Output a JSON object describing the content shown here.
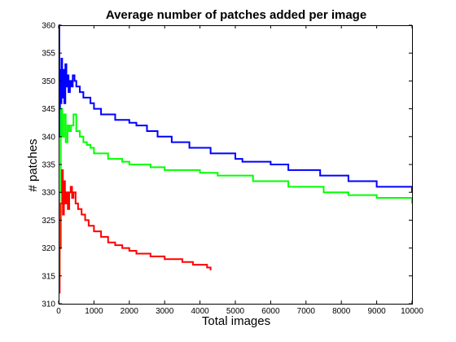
{
  "chart_data": {
    "type": "line",
    "title": "Average number of patches added per image",
    "xlabel": "Total images",
    "ylabel": "# patches",
    "xlim": [
      0,
      10000
    ],
    "ylim": [
      310,
      360
    ],
    "xticks": [
      0,
      1000,
      2000,
      3000,
      4000,
      5000,
      6000,
      7000,
      8000,
      9000,
      10000
    ],
    "yticks": [
      310,
      315,
      320,
      325,
      330,
      335,
      340,
      345,
      350,
      355,
      360
    ],
    "grid": false,
    "series": [
      {
        "color": "#0000ff",
        "points": [
          [
            0,
            360
          ],
          [
            20,
            340
          ],
          [
            40,
            352
          ],
          [
            60,
            346
          ],
          [
            80,
            354
          ],
          [
            100,
            347
          ],
          [
            130,
            352
          ],
          [
            160,
            346
          ],
          [
            190,
            353
          ],
          [
            220,
            349
          ],
          [
            250,
            351
          ],
          [
            280,
            348
          ],
          [
            320,
            350
          ],
          [
            360,
            349
          ],
          [
            400,
            351
          ],
          [
            450,
            350
          ],
          [
            500,
            349
          ],
          [
            600,
            348
          ],
          [
            700,
            347
          ],
          [
            800,
            347
          ],
          [
            900,
            346
          ],
          [
            1000,
            345
          ],
          [
            1200,
            344
          ],
          [
            1400,
            344
          ],
          [
            1600,
            343
          ],
          [
            1800,
            343
          ],
          [
            2000,
            342.5
          ],
          [
            2200,
            342
          ],
          [
            2500,
            341
          ],
          [
            2800,
            340
          ],
          [
            3200,
            339
          ],
          [
            3700,
            338
          ],
          [
            4300,
            337
          ],
          [
            5000,
            336
          ],
          [
            5200,
            335.5
          ],
          [
            6000,
            335
          ],
          [
            6500,
            334
          ],
          [
            7400,
            333
          ],
          [
            8200,
            332
          ],
          [
            9000,
            331
          ],
          [
            10000,
            330
          ]
        ]
      },
      {
        "color": "#00ff00",
        "points": [
          [
            0,
            315
          ],
          [
            30,
            330
          ],
          [
            60,
            345
          ],
          [
            100,
            340
          ],
          [
            150,
            344
          ],
          [
            200,
            339
          ],
          [
            250,
            342
          ],
          [
            300,
            341
          ],
          [
            350,
            342
          ],
          [
            420,
            344
          ],
          [
            500,
            341
          ],
          [
            600,
            340
          ],
          [
            700,
            339
          ],
          [
            800,
            338.5
          ],
          [
            900,
            338
          ],
          [
            1000,
            337
          ],
          [
            1200,
            337
          ],
          [
            1400,
            336
          ],
          [
            1600,
            336
          ],
          [
            1800,
            335.5
          ],
          [
            2000,
            335
          ],
          [
            2300,
            335
          ],
          [
            2600,
            334.5
          ],
          [
            3000,
            334
          ],
          [
            3500,
            334
          ],
          [
            4000,
            333.5
          ],
          [
            4500,
            333
          ],
          [
            5500,
            332
          ],
          [
            6500,
            331
          ],
          [
            7500,
            330
          ],
          [
            8200,
            329.5
          ],
          [
            9000,
            329
          ],
          [
            10000,
            328
          ]
        ]
      },
      {
        "color": "#ff0000",
        "points": [
          [
            0,
            312
          ],
          [
            30,
            320
          ],
          [
            60,
            328
          ],
          [
            100,
            334
          ],
          [
            120,
            326
          ],
          [
            150,
            332
          ],
          [
            180,
            328
          ],
          [
            220,
            330
          ],
          [
            260,
            327
          ],
          [
            300,
            330
          ],
          [
            340,
            331
          ],
          [
            380,
            329
          ],
          [
            420,
            330
          ],
          [
            480,
            328
          ],
          [
            550,
            327
          ],
          [
            650,
            326
          ],
          [
            750,
            325
          ],
          [
            850,
            324
          ],
          [
            1000,
            323
          ],
          [
            1200,
            322
          ],
          [
            1400,
            321
          ],
          [
            1600,
            320.5
          ],
          [
            1800,
            320
          ],
          [
            2000,
            319.5
          ],
          [
            2200,
            319
          ],
          [
            2600,
            318.5
          ],
          [
            3000,
            318
          ],
          [
            3500,
            317.5
          ],
          [
            3800,
            317
          ],
          [
            4200,
            316.5
          ],
          [
            4300,
            316
          ]
        ]
      }
    ]
  }
}
